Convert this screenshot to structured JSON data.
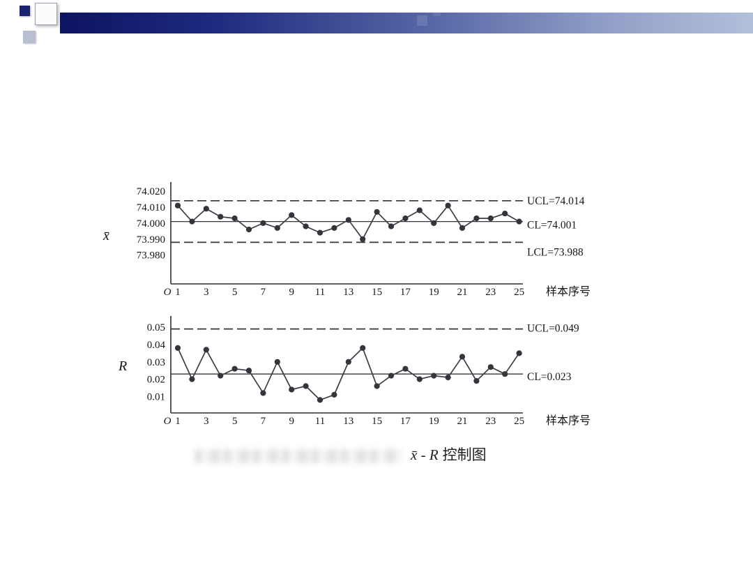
{
  "slide": {
    "caption_formula": "x̄ - R",
    "caption_text": "控制图"
  },
  "chart_data": [
    {
      "type": "line",
      "name": "xbar-chart",
      "title": "x-bar control chart",
      "ylabel": "x̄",
      "xlabel": "样本序号",
      "x": [
        1,
        2,
        3,
        4,
        5,
        6,
        7,
        8,
        9,
        10,
        11,
        12,
        13,
        14,
        15,
        16,
        17,
        18,
        19,
        20,
        21,
        22,
        23,
        24,
        25
      ],
      "values": [
        74.011,
        74.001,
        74.009,
        74.004,
        74.003,
        73.996,
        74.0,
        73.997,
        74.005,
        73.998,
        73.994,
        73.997,
        74.002,
        73.99,
        74.007,
        73.998,
        74.003,
        74.008,
        74.0,
        74.011,
        73.997,
        74.003,
        74.003,
        74.006,
        74.001
      ],
      "ytick_labels": [
        "74.020",
        "74.010",
        "74.000",
        "73.990",
        "73.980"
      ],
      "ytick_values": [
        74.02,
        74.01,
        74.0,
        73.99,
        73.98
      ],
      "xtick_labels": [
        "O",
        "1",
        "3",
        "5",
        "7",
        "9",
        "11",
        "13",
        "15",
        "17",
        "19",
        "21",
        "23",
        "25"
      ],
      "ylim": [
        73.962,
        74.0235
      ],
      "grid": false,
      "legend": "none",
      "control_lines": [
        {
          "name": "UCL",
          "value": 74.014,
          "label": "UCL=74.014",
          "dashed": true
        },
        {
          "name": "CL",
          "value": 74.001,
          "label": "CL=74.001",
          "dashed": false
        },
        {
          "name": "LCL",
          "value": 73.988,
          "label": "LCL=73.988",
          "dashed": true
        }
      ]
    },
    {
      "type": "line",
      "name": "r-chart",
      "title": "R control chart",
      "ylabel": "R",
      "xlabel": "样本序号",
      "x": [
        1,
        2,
        3,
        4,
        5,
        6,
        7,
        8,
        9,
        10,
        11,
        12,
        13,
        14,
        15,
        16,
        17,
        18,
        19,
        20,
        21,
        22,
        23,
        24,
        25
      ],
      "values": [
        0.038,
        0.02,
        0.037,
        0.022,
        0.026,
        0.025,
        0.012,
        0.03,
        0.014,
        0.016,
        0.008,
        0.011,
        0.03,
        0.038,
        0.016,
        0.022,
        0.026,
        0.02,
        0.022,
        0.021,
        0.033,
        0.019,
        0.027,
        0.023,
        0.035
      ],
      "ytick_labels": [
        "0.05",
        "0.04",
        "0.03",
        "0.02",
        "0.01"
      ],
      "ytick_values": [
        0.05,
        0.04,
        0.03,
        0.02,
        0.01
      ],
      "xtick_labels": [
        "O",
        "1",
        "3",
        "5",
        "7",
        "9",
        "11",
        "13",
        "15",
        "17",
        "19",
        "21",
        "23",
        "25"
      ],
      "ylim": [
        0.0005,
        0.0545
      ],
      "grid": false,
      "legend": "none",
      "control_lines": [
        {
          "name": "UCL",
          "value": 0.049,
          "label": "UCL=0.049",
          "dashed": true
        },
        {
          "name": "CL",
          "value": 0.023,
          "label": "CL=0.023",
          "dashed": false
        }
      ]
    }
  ]
}
